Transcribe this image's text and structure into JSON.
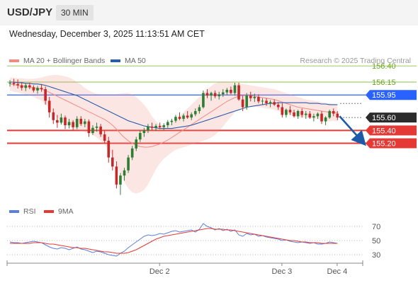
{
  "header": {
    "symbol": "USD/JPY",
    "interval": "30 MIN"
  },
  "datetime": "Wednesday, December 3, 2025 11:13:51 AM CET",
  "source": "Research © 2025 Trading Central",
  "colors": {
    "bollinger": "#f28b82",
    "ma50": "#2a5ca8",
    "bull": "#2e7d32",
    "bear": "#c62828",
    "resistance": "#8bc34a",
    "support": "#e53935",
    "pivot": "#2962ff",
    "rsi": "#5b7fdc",
    "rsi_ma": "#e53935",
    "arrow": "#1e5aa8"
  },
  "chart_data": [
    {
      "type": "candlestick",
      "legend": [
        {
          "label": "MA 20 + Bollinger Bands",
          "color": "#f28b82"
        },
        {
          "label": "MA 50",
          "color": "#2a5ca8"
        }
      ],
      "ylim": [
        154.35,
        156.6
      ],
      "x_ticks": [
        "Dec 2",
        "Dec 3",
        "Dec 4"
      ],
      "last_price": 155.6,
      "levels": [
        {
          "label": "156.40",
          "value": 156.4,
          "kind": "resistance"
        },
        {
          "label": "156.15",
          "value": 156.15,
          "kind": "resistance"
        },
        {
          "label": "155.95",
          "value": 155.95,
          "kind": "pivot"
        },
        {
          "label": "155.40",
          "value": 155.4,
          "kind": "support"
        },
        {
          "label": "155.20",
          "value": 155.2,
          "kind": "support"
        }
      ],
      "ohlc": [
        [
          156.13,
          156.18,
          156.08,
          156.14
        ],
        [
          156.14,
          156.2,
          156.09,
          156.12
        ],
        [
          156.12,
          156.19,
          156.05,
          156.1
        ],
        [
          156.1,
          156.15,
          156.02,
          156.06
        ],
        [
          156.06,
          156.13,
          156.01,
          156.1
        ],
        [
          156.1,
          156.14,
          156.04,
          156.07
        ],
        [
          156.07,
          156.1,
          155.99,
          156.02
        ],
        [
          156.02,
          156.09,
          155.97,
          156.06
        ],
        [
          156.06,
          156.12,
          156.0,
          156.04
        ],
        [
          156.04,
          156.08,
          155.8,
          155.86
        ],
        [
          155.86,
          155.92,
          155.6,
          155.68
        ],
        [
          155.68,
          155.74,
          155.5,
          155.56
        ],
        [
          155.56,
          155.64,
          155.44,
          155.52
        ],
        [
          155.52,
          155.66,
          155.49,
          155.6
        ],
        [
          155.6,
          155.63,
          155.42,
          155.48
        ],
        [
          155.48,
          155.58,
          155.43,
          155.53
        ],
        [
          155.53,
          155.56,
          155.4,
          155.45
        ],
        [
          155.45,
          155.62,
          155.42,
          155.58
        ],
        [
          155.58,
          155.62,
          155.47,
          155.5
        ],
        [
          155.5,
          155.58,
          155.45,
          155.54
        ],
        [
          155.54,
          155.57,
          155.3,
          155.36
        ],
        [
          155.36,
          155.48,
          155.33,
          155.44
        ],
        [
          155.44,
          155.52,
          155.38,
          155.46
        ],
        [
          155.46,
          155.5,
          155.3,
          155.34
        ],
        [
          155.34,
          155.4,
          155.2,
          155.24
        ],
        [
          155.24,
          155.3,
          154.9,
          154.98
        ],
        [
          154.98,
          155.1,
          154.78,
          154.84
        ],
        [
          154.84,
          154.92,
          154.5,
          154.56
        ],
        [
          154.56,
          154.74,
          154.4,
          154.7
        ],
        [
          154.7,
          154.82,
          154.62,
          154.78
        ],
        [
          154.78,
          155.02,
          154.74,
          154.98
        ],
        [
          154.98,
          155.16,
          154.94,
          155.12
        ],
        [
          155.12,
          155.3,
          155.08,
          155.26
        ],
        [
          155.26,
          155.4,
          155.22,
          155.36
        ],
        [
          155.36,
          155.44,
          155.3,
          155.4
        ],
        [
          155.4,
          155.5,
          155.36,
          155.46
        ],
        [
          155.46,
          155.52,
          155.4,
          155.44
        ],
        [
          155.44,
          155.5,
          155.39,
          155.47
        ],
        [
          155.47,
          155.52,
          155.42,
          155.45
        ],
        [
          155.45,
          155.51,
          155.4,
          155.48
        ],
        [
          155.48,
          155.56,
          155.44,
          155.53
        ],
        [
          155.53,
          155.58,
          155.48,
          155.55
        ],
        [
          155.55,
          155.64,
          155.52,
          155.61
        ],
        [
          155.61,
          155.68,
          155.56,
          155.58
        ],
        [
          155.58,
          155.66,
          155.54,
          155.63
        ],
        [
          155.63,
          155.7,
          155.58,
          155.6
        ],
        [
          155.6,
          155.68,
          155.56,
          155.65
        ],
        [
          155.65,
          155.74,
          155.62,
          155.7
        ],
        [
          155.7,
          155.8,
          155.66,
          155.76
        ],
        [
          155.76,
          156.02,
          155.74,
          155.98
        ],
        [
          155.98,
          156.04,
          155.9,
          155.94
        ],
        [
          155.94,
          156.0,
          155.86,
          155.98
        ],
        [
          155.98,
          156.02,
          155.9,
          155.93
        ],
        [
          155.93,
          156.0,
          155.88,
          155.96
        ],
        [
          155.96,
          156.04,
          155.92,
          155.99
        ],
        [
          155.99,
          156.06,
          155.95,
          156.03
        ],
        [
          156.03,
          156.08,
          155.96,
          155.98
        ],
        [
          155.98,
          156.14,
          155.94,
          156.1
        ],
        [
          156.1,
          156.14,
          155.86,
          155.88
        ],
        [
          155.88,
          155.94,
          155.7,
          155.76
        ],
        [
          155.76,
          155.98,
          155.72,
          155.94
        ],
        [
          155.94,
          156.0,
          155.85,
          155.9
        ],
        [
          155.9,
          155.97,
          155.84,
          155.92
        ],
        [
          155.92,
          155.96,
          155.82,
          155.85
        ],
        [
          155.85,
          155.9,
          155.8,
          155.86
        ],
        [
          155.86,
          155.9,
          155.78,
          155.82
        ],
        [
          155.82,
          155.87,
          155.76,
          155.84
        ],
        [
          155.84,
          155.88,
          155.78,
          155.8
        ],
        [
          155.8,
          155.84,
          155.72,
          155.76
        ],
        [
          155.76,
          155.82,
          155.6,
          155.64
        ],
        [
          155.64,
          155.74,
          155.6,
          155.72
        ],
        [
          155.72,
          155.78,
          155.64,
          155.68
        ],
        [
          155.68,
          155.72,
          155.6,
          155.62
        ],
        [
          155.62,
          155.72,
          155.58,
          155.7
        ],
        [
          155.7,
          155.74,
          155.6,
          155.64
        ],
        [
          155.64,
          155.7,
          155.58,
          155.66
        ],
        [
          155.66,
          155.7,
          155.58,
          155.6
        ],
        [
          155.6,
          155.66,
          155.54,
          155.62
        ],
        [
          155.62,
          155.68,
          155.58,
          155.66
        ],
        [
          155.66,
          155.7,
          155.5,
          155.54
        ],
        [
          155.54,
          155.62,
          155.48,
          155.6
        ],
        [
          155.6,
          155.72,
          155.58,
          155.7
        ],
        [
          155.7,
          155.74,
          155.62,
          155.66
        ],
        [
          155.66,
          155.7,
          155.56,
          155.6
        ]
      ],
      "bollinger_middle": [
        156.12,
        156.11,
        156.1,
        156.09,
        156.08,
        156.07,
        156.06,
        156.05,
        156.04,
        156.02,
        155.99,
        155.96,
        155.93,
        155.9,
        155.87,
        155.84,
        155.81,
        155.78,
        155.75,
        155.72,
        155.69,
        155.66,
        155.63,
        155.6,
        155.57,
        155.53,
        155.48,
        155.42,
        155.35,
        155.29,
        155.24,
        155.2,
        155.17,
        155.15,
        155.14,
        155.14,
        155.15,
        155.17,
        155.19,
        155.22,
        155.25,
        155.29,
        155.33,
        155.37,
        155.41,
        155.45,
        155.49,
        155.53,
        155.57,
        155.61,
        155.65,
        155.69,
        155.73,
        155.77,
        155.81,
        155.85,
        155.88,
        155.91,
        155.93,
        155.94,
        155.94,
        155.94,
        155.93,
        155.92,
        155.91,
        155.9,
        155.89,
        155.88,
        155.86,
        155.84,
        155.82,
        155.8,
        155.78,
        155.76,
        155.75,
        155.74,
        155.73,
        155.72,
        155.71,
        155.7,
        155.69,
        155.68,
        155.68,
        155.67
      ],
      "bollinger_upper": [
        156.22,
        156.22,
        156.21,
        156.21,
        156.2,
        156.2,
        156.2,
        156.21,
        156.22,
        156.24,
        156.25,
        156.26,
        156.26,
        156.25,
        156.24,
        156.22,
        156.19,
        156.15,
        156.11,
        156.06,
        156.02,
        155.99,
        155.97,
        155.96,
        155.96,
        155.96,
        155.96,
        155.96,
        155.97,
        155.98,
        155.98,
        155.96,
        155.92,
        155.86,
        155.8,
        155.72,
        155.62,
        155.54,
        155.49,
        155.48,
        155.49,
        155.52,
        155.56,
        155.62,
        155.68,
        155.74,
        155.8,
        155.86,
        155.92,
        155.98,
        156.04,
        156.09,
        156.13,
        156.15,
        156.16,
        156.16,
        156.15,
        156.14,
        156.13,
        156.12,
        156.11,
        156.1,
        156.09,
        156.08,
        156.07,
        156.06,
        156.05,
        156.04,
        156.02,
        156.0,
        155.98,
        155.96,
        155.94,
        155.92,
        155.9,
        155.88,
        155.87,
        155.86,
        155.85,
        155.84,
        155.83,
        155.82,
        155.81,
        155.8
      ],
      "bollinger_lower": [
        156.02,
        156.0,
        155.99,
        155.97,
        155.96,
        155.94,
        155.92,
        155.89,
        155.86,
        155.8,
        155.73,
        155.66,
        155.6,
        155.55,
        155.5,
        155.46,
        155.43,
        155.41,
        155.39,
        155.38,
        155.36,
        155.33,
        155.29,
        155.24,
        155.18,
        155.1,
        155.0,
        154.88,
        154.73,
        154.6,
        154.5,
        154.44,
        154.42,
        154.44,
        154.48,
        154.56,
        154.68,
        154.8,
        154.89,
        154.96,
        155.01,
        155.06,
        155.1,
        155.12,
        155.14,
        155.16,
        155.18,
        155.2,
        155.22,
        155.24,
        155.26,
        155.29,
        155.33,
        155.39,
        155.46,
        155.54,
        155.61,
        155.68,
        155.73,
        155.76,
        155.77,
        155.78,
        155.77,
        155.76,
        155.75,
        155.74,
        155.73,
        155.72,
        155.7,
        155.68,
        155.66,
        155.64,
        155.62,
        155.6,
        155.6,
        155.6,
        155.59,
        155.58,
        155.57,
        155.56,
        155.55,
        155.54,
        155.55,
        155.54
      ],
      "ma50": [
        156.15,
        156.15,
        156.14,
        156.14,
        156.13,
        156.13,
        156.12,
        156.12,
        156.11,
        156.1,
        156.08,
        156.06,
        156.04,
        156.02,
        156.0,
        155.98,
        155.96,
        155.94,
        155.91,
        155.88,
        155.85,
        155.82,
        155.79,
        155.76,
        155.73,
        155.7,
        155.67,
        155.64,
        155.61,
        155.58,
        155.55,
        155.53,
        155.51,
        155.49,
        155.47,
        155.46,
        155.45,
        155.44,
        155.43,
        155.43,
        155.43,
        155.43,
        155.44,
        155.45,
        155.46,
        155.47,
        155.48,
        155.5,
        155.52,
        155.54,
        155.56,
        155.58,
        155.6,
        155.62,
        155.64,
        155.66,
        155.68,
        155.7,
        155.72,
        155.74,
        155.76,
        155.77,
        155.78,
        155.79,
        155.8,
        155.81,
        155.82,
        155.82,
        155.83,
        155.83,
        155.83,
        155.83,
        155.83,
        155.83,
        155.83,
        155.83,
        155.82,
        155.82,
        155.82,
        155.81,
        155.81,
        155.8,
        155.8,
        155.8
      ],
      "projection": {
        "from": 155.62,
        "to": 155.2
      }
    },
    {
      "type": "line",
      "legend": [
        {
          "label": "RSI",
          "color": "#5b7fdc"
        },
        {
          "label": "9MA",
          "color": "#e53935"
        }
      ],
      "ylim": [
        20,
        80
      ],
      "y_ticks": [
        70,
        50,
        30
      ],
      "series": [
        {
          "name": "RSI",
          "values": [
            48,
            47,
            47,
            46,
            47,
            48,
            49,
            48,
            47,
            44,
            41,
            39,
            38,
            40,
            39,
            37,
            39,
            41,
            38,
            37,
            35,
            33,
            35,
            34,
            32,
            30,
            29,
            28,
            32,
            35,
            40,
            44,
            48,
            52,
            56,
            58,
            57,
            58,
            60,
            59,
            61,
            63,
            64,
            62,
            63,
            64,
            65,
            62,
            66,
            74,
            70,
            68,
            65,
            67,
            64,
            66,
            63,
            65,
            58,
            56,
            60,
            58,
            59,
            56,
            57,
            55,
            54,
            53,
            52,
            50,
            51,
            49,
            48,
            47,
            48,
            47,
            46,
            47,
            45,
            45,
            46,
            48,
            47,
            46
          ]
        },
        {
          "name": "9MA",
          "values": [
            46,
            46,
            46,
            46,
            46,
            46,
            47,
            47,
            47,
            46,
            45,
            45,
            44,
            43,
            42,
            41,
            40,
            40,
            39,
            39,
            38,
            37,
            36,
            35,
            34,
            34,
            33,
            32,
            32,
            32,
            33,
            35,
            37,
            40,
            43,
            46,
            49,
            52,
            54,
            56,
            57,
            58,
            59,
            60,
            61,
            62,
            63,
            64,
            65,
            66,
            67,
            67,
            66,
            66,
            66,
            65,
            65,
            64,
            63,
            62,
            61,
            60,
            59,
            58,
            57,
            56,
            55,
            54,
            53,
            52,
            51,
            50,
            50,
            49,
            48,
            48,
            47,
            47,
            47,
            46,
            46,
            46,
            46,
            46
          ]
        }
      ]
    }
  ]
}
